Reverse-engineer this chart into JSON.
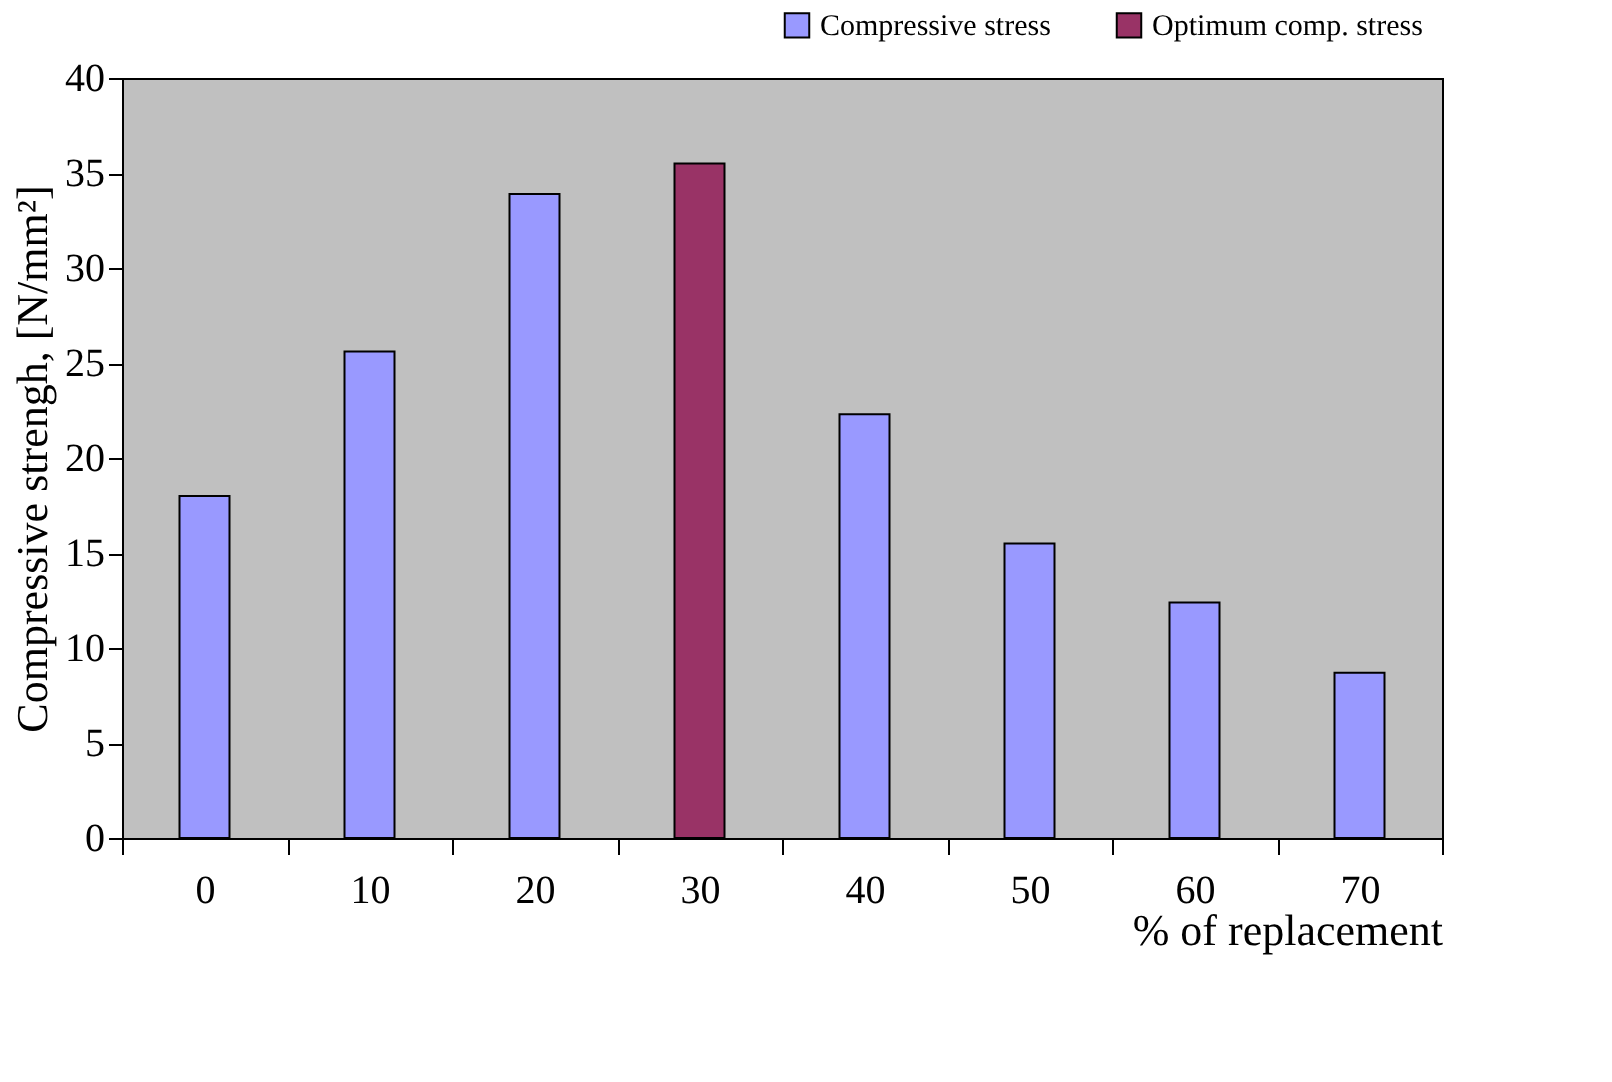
{
  "chart_data": {
    "type": "bar",
    "xlabel": "% of replacement",
    "ylabel": "Compressive strengh, [N/mm²]",
    "categories": [
      "0",
      "10",
      "20",
      "30",
      "40",
      "50",
      "60",
      "70"
    ],
    "series": [
      {
        "name": "Compressive stress",
        "color": "#9999ff",
        "values": [
          18,
          25.6,
          33.9,
          null,
          22.3,
          15.5,
          12.4,
          8.7
        ]
      },
      {
        "name": "Optimum comp. stress",
        "color": "#993366",
        "values": [
          null,
          null,
          null,
          35.5,
          null,
          null,
          null,
          null
        ]
      }
    ],
    "ylim": [
      0,
      40
    ],
    "yticks": [
      0,
      5,
      10,
      15,
      20,
      25,
      30,
      35,
      40
    ],
    "grid": false,
    "legend": "top right"
  }
}
